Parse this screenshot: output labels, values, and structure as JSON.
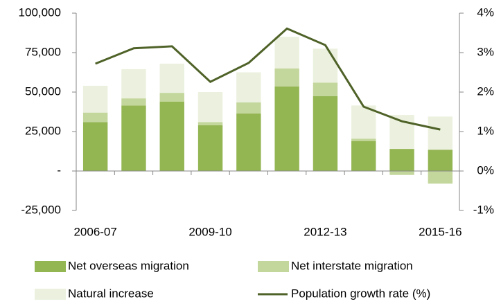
{
  "chart_data": {
    "type": "bar",
    "categories": [
      "2006-07",
      null,
      null,
      "2009-10",
      null,
      null,
      "2012-13",
      null,
      null,
      "2015-16"
    ],
    "series": [
      {
        "name": "Net overseas migration",
        "color": "#93b552",
        "values": [
          31000,
          41500,
          44000,
          29000,
          36500,
          53500,
          47500,
          19000,
          14000,
          13500
        ]
      },
      {
        "name": "Net interstate migration",
        "color": "#c3d69b",
        "values": [
          6000,
          4500,
          5500,
          2000,
          7000,
          11500,
          8500,
          1500,
          -2500,
          -8000
        ]
      },
      {
        "name": "Natural increase",
        "color": "#ebf1de",
        "values": [
          17000,
          18500,
          18500,
          19000,
          19000,
          20000,
          21500,
          21000,
          21500,
          21000
        ]
      },
      {
        "name": "Population growth rate (%)",
        "color": "#4f6228",
        "type": "line",
        "axis": "y2",
        "values": [
          2.72,
          3.11,
          3.16,
          2.26,
          2.74,
          3.61,
          3.19,
          1.63,
          1.26,
          1.05
        ]
      }
    ],
    "stacked": true,
    "ylim": [
      -25000,
      100000
    ],
    "yticks": [
      {
        "value": -25000,
        "label": "-25,000"
      },
      {
        "value": 0,
        "label": "-"
      },
      {
        "value": 25000,
        "label": "25,000"
      },
      {
        "value": 50000,
        "label": "50,000"
      },
      {
        "value": 75000,
        "label": "75,000"
      },
      {
        "value": 100000,
        "label": "100,000"
      }
    ],
    "y2lim": [
      -1,
      4
    ],
    "y2ticks": [
      {
        "value": -1,
        "label": "-1%"
      },
      {
        "value": 0,
        "label": "0%"
      },
      {
        "value": 1,
        "label": "1%"
      },
      {
        "value": 2,
        "label": "2%"
      },
      {
        "value": 3,
        "label": "3%"
      },
      {
        "value": 4,
        "label": "4%"
      }
    ],
    "grid": false,
    "legend": "bottom"
  }
}
